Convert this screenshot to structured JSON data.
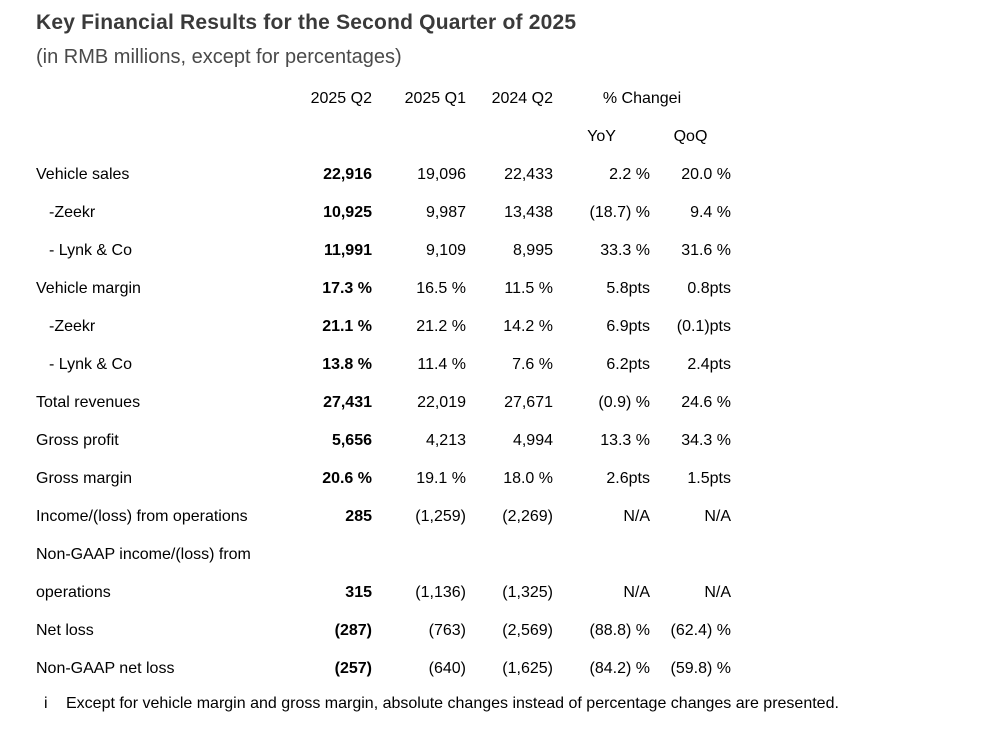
{
  "page": {
    "title": "Key Financial Results for the Second Quarter of 2025",
    "subtitle": "(in RMB millions, except for percentages)"
  },
  "table": {
    "period_headers": [
      "2025 Q2",
      "2025 Q1",
      "2024 Q2"
    ],
    "change_header": {
      "label": "% Change",
      "footnote_marker": "i"
    },
    "sub_headers": {
      "yoy": "YoY",
      "qoq": "QoQ"
    },
    "rows": [
      {
        "label": "Vehicle sales",
        "indent": false,
        "q2_2025": "22,916",
        "q1_2025": "19,096",
        "q2_2024": "22,433",
        "yoy": "2.2 %",
        "qoq": "20.0 %"
      },
      {
        "label": "-Zeekr",
        "indent": true,
        "q2_2025": "10,925",
        "q1_2025": "9,987",
        "q2_2024": "13,438",
        "yoy": "(18.7) %",
        "qoq": "9.4 %"
      },
      {
        "label": "- Lynk & Co",
        "indent": true,
        "q2_2025": "11,991",
        "q1_2025": "9,109",
        "q2_2024": "8,995",
        "yoy": "33.3 %",
        "qoq": "31.6 %"
      },
      {
        "label": "Vehicle margin",
        "indent": false,
        "q2_2025": "17.3 %",
        "q1_2025": "16.5 %",
        "q2_2024": "11.5 %",
        "yoy": "5.8pts",
        "qoq": "0.8pts"
      },
      {
        "label": "-Zeekr",
        "indent": true,
        "q2_2025": "21.1 %",
        "q1_2025": "21.2 %",
        "q2_2024": "14.2 %",
        "yoy": "6.9pts",
        "qoq": "(0.1)pts"
      },
      {
        "label": "- Lynk & Co",
        "indent": true,
        "q2_2025": "13.8 %",
        "q1_2025": "11.4 %",
        "q2_2024": "7.6 %",
        "yoy": "6.2pts",
        "qoq": "2.4pts"
      },
      {
        "label": "Total revenues",
        "indent": false,
        "q2_2025": "27,431",
        "q1_2025": "22,019",
        "q2_2024": "27,671",
        "yoy": "(0.9) %",
        "qoq": "24.6 %"
      },
      {
        "label": "Gross profit",
        "indent": false,
        "q2_2025": "5,656",
        "q1_2025": "4,213",
        "q2_2024": "4,994",
        "yoy": "13.3 %",
        "qoq": "34.3 %"
      },
      {
        "label": "Gross margin",
        "indent": false,
        "q2_2025": "20.6 %",
        "q1_2025": "19.1 %",
        "q2_2024": "18.0 %",
        "yoy": "2.6pts",
        "qoq": "1.5pts"
      },
      {
        "label": "Income/(loss) from operations",
        "indent": false,
        "q2_2025": "285",
        "q1_2025": "(1,259)",
        "q2_2024": "(2,269)",
        "yoy": "N/A",
        "qoq": "N/A"
      },
      {
        "label": "Non-GAAP income/(loss) from",
        "indent": false,
        "q2_2025": "",
        "q1_2025": "",
        "q2_2024": "",
        "yoy": "",
        "qoq": ""
      },
      {
        "label": "operations",
        "indent": false,
        "q2_2025": "315",
        "q1_2025": "(1,136)",
        "q2_2024": "(1,325)",
        "yoy": "N/A",
        "qoq": "N/A"
      },
      {
        "label": "Net loss",
        "indent": false,
        "q2_2025": "(287)",
        "q1_2025": "(763)",
        "q2_2024": "(2,569)",
        "yoy": "(88.8) %",
        "qoq": "(62.4) %"
      },
      {
        "label": "Non-GAAP net loss",
        "indent": false,
        "q2_2025": "(257)",
        "q1_2025": "(640)",
        "q2_2024": "(1,625)",
        "yoy": "(84.2) %",
        "qoq": "(59.8) %"
      }
    ]
  },
  "footnote": {
    "marker": "i",
    "text": "Except for vehicle margin and gross margin, absolute changes instead of percentage changes are presented."
  },
  "colors": {
    "background": "#ffffff",
    "title_text": "#3a3a3a",
    "subtitle_text": "#4a4a4a",
    "table_text": "#000000"
  }
}
